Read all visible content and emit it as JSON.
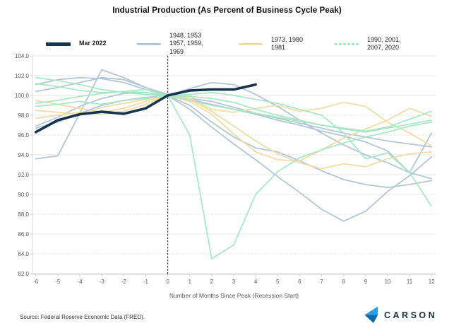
{
  "title": "Industrial Production (As Percent of Business Cycle Peak)",
  "legend": {
    "items": [
      {
        "label": "Mar 2022",
        "color": "#16334f",
        "style": "solid"
      },
      {
        "label": "1948, 1953\n1957, 1959,\n1969",
        "color": "#b3c6d6",
        "style": "solid"
      },
      {
        "label": "1973, 1980\n1981",
        "color": "#f2dca5",
        "style": "solid"
      },
      {
        "label": "1990, 2001,\n2007, 2020",
        "color": "#a5e7c3",
        "style": "dashed"
      }
    ]
  },
  "chart_data": {
    "type": "line",
    "title": "Industrial Production (As Percent of Business Cycle Peak)",
    "xlabel": "Number of Months Since Peak (Recession Start)",
    "ylabel": "",
    "ylim": [
      82,
      104
    ],
    "ytick_step": 2,
    "grid": "horizontal",
    "legend_position": "top",
    "peak_marker_x": 0,
    "x": [
      -6,
      -5,
      -4,
      -3,
      -2,
      -1,
      0,
      1,
      2,
      3,
      4,
      5,
      6,
      7,
      8,
      9,
      10,
      11,
      12
    ],
    "x_tick_labels": [
      "-6",
      "-5",
      "-4",
      "-3",
      "-2",
      "-1",
      "0",
      "1",
      "2",
      "3",
      "4",
      "5",
      "6",
      "7",
      "8",
      "9",
      "10",
      "11",
      "12"
    ],
    "y_tick_labels": [
      "104.0",
      "102.0",
      "100.0",
      "98.0",
      "96.0",
      "94.0",
      "92.0",
      "90.0",
      "88.0",
      "86.0",
      "84.0",
      "82.0"
    ],
    "series": [
      {
        "name": "1948",
        "group": "1948, 1953, 1957, 1959, 1969",
        "color": "#b3c6d6",
        "dash": "solid",
        "values": [
          100.4,
          100.8,
          101.3,
          101.8,
          101.6,
          100.8,
          100.0,
          99.0,
          97.3,
          95.8,
          94.7,
          94.3,
          93.4,
          92.4,
          91.5,
          91.0,
          90.7,
          91.0,
          91.4
        ]
      },
      {
        "name": "1953",
        "group": "1948, 1953, 1957, 1959, 1969",
        "color": "#b3c6d6",
        "dash": "solid",
        "values": [
          96.7,
          97.3,
          98.2,
          99.0,
          99.5,
          99.8,
          100.0,
          100.7,
          101.3,
          101.1,
          100.1,
          98.9,
          97.5,
          96.2,
          95.0,
          94.0,
          93.2,
          92.2,
          91.6
        ]
      },
      {
        "name": "1957",
        "group": "1948, 1953, 1957, 1959, 1969",
        "color": "#b3c6d6",
        "dash": "solid",
        "values": [
          101.1,
          101.6,
          101.8,
          101.7,
          101.3,
          100.6,
          100.0,
          98.6,
          96.8,
          95.1,
          93.5,
          91.8,
          90.2,
          88.5,
          87.3,
          88.3,
          90.3,
          91.9,
          93.8
        ]
      },
      {
        "name": "1959",
        "group": "1948, 1953, 1957, 1959, 1969",
        "color": "#b3c6d6",
        "dash": "solid",
        "values": [
          93.6,
          93.9,
          98.2,
          102.6,
          101.8,
          100.8,
          100.1,
          99.7,
          99.4,
          98.8,
          98.2,
          97.7,
          97.2,
          96.7,
          96.2,
          95.8,
          95.4,
          95.1,
          94.8
        ]
      },
      {
        "name": "1969",
        "group": "1948, 1953, 1957, 1959, 1969",
        "color": "#b3c6d6",
        "dash": "solid",
        "values": [
          96.9,
          97.8,
          98.9,
          99.7,
          100.2,
          100.3,
          100.0,
          99.6,
          99.1,
          98.6,
          98.1,
          97.5,
          97.0,
          96.4,
          95.9,
          95.3,
          94.4,
          92.2,
          96.2
        ]
      },
      {
        "name": "1973",
        "group": "1973, 1980, 1981",
        "color": "#f2dca5",
        "dash": "solid",
        "values": [
          98.5,
          98.3,
          98.1,
          98.8,
          99.2,
          99.6,
          100.0,
          99.7,
          98.6,
          98.3,
          98.7,
          99.0,
          98.4,
          98.7,
          99.3,
          98.9,
          97.3,
          96.2,
          94.9
        ]
      },
      {
        "name": "1980",
        "group": "1973, 1980, 1981",
        "color": "#f2dca5",
        "dash": "solid",
        "values": [
          99.5,
          99.1,
          98.7,
          98.3,
          98.7,
          99.4,
          100.0,
          99.4,
          98.1,
          96.1,
          94.3,
          93.5,
          93.4,
          94.5,
          95.7,
          96.6,
          97.5,
          98.7,
          97.9
        ]
      },
      {
        "name": "1981",
        "group": "1973, 1980, 1981",
        "color": "#f2dca5",
        "dash": "solid",
        "values": [
          97.7,
          98.0,
          98.3,
          98.1,
          98.4,
          99.1,
          100.0,
          99.6,
          98.4,
          96.9,
          95.4,
          94.1,
          93.2,
          92.6,
          93.1,
          92.8,
          93.6,
          94.1,
          94.3
        ]
      },
      {
        "name": "1990",
        "group": "1990, 2001, 2007, 2020",
        "color": "#a5e7c3",
        "dash": "dashed",
        "values": [
          99.2,
          99.5,
          99.9,
          100.2,
          100.4,
          100.3,
          100.0,
          99.9,
          99.7,
          99.3,
          98.6,
          98.0,
          97.5,
          97.0,
          96.6,
          96.3,
          96.7,
          97.1,
          97.5
        ]
      },
      {
        "name": "2001",
        "group": "1990, 2001, 2007, 2020",
        "color": "#a5e7c3",
        "dash": "dashed",
        "values": [
          101.8,
          101.5,
          101.1,
          100.6,
          100.3,
          100.1,
          100.0,
          99.5,
          99.0,
          98.6,
          98.2,
          97.8,
          97.4,
          97.0,
          96.7,
          96.4,
          96.8,
          97.6,
          98.4
        ]
      },
      {
        "name": "2007",
        "group": "1990, 2001, 2007, 2020",
        "color": "#a5e7c3",
        "dash": "dashed",
        "values": [
          101.2,
          100.9,
          100.5,
          100.3,
          100.4,
          100.6,
          100.0,
          100.1,
          100.3,
          100.0,
          99.6,
          99.2,
          98.6,
          98.0,
          96.2,
          93.6,
          94.2,
          92.2,
          88.8
        ]
      },
      {
        "name": "2020",
        "group": "1990, 2001, 2007, 2020",
        "color": "#a5e7c3",
        "dash": "dashed",
        "values": [
          98.9,
          99.1,
          99.4,
          99.1,
          99.5,
          99.7,
          100.0,
          96.0,
          83.5,
          84.9,
          90.0,
          92.3,
          93.7,
          94.5,
          95.2,
          95.8,
          96.3,
          96.9,
          97.3
        ]
      },
      {
        "name": "Mar 2022",
        "group": "Mar 2022",
        "color": "#16334f",
        "dash": "solid",
        "width": 3.6,
        "values": [
          96.3,
          97.5,
          98.1,
          98.35,
          98.15,
          98.7,
          100.0,
          100.5,
          100.6,
          100.6,
          101.1
        ]
      }
    ]
  },
  "footer": {
    "source": "Source: Federal Reserve Economic Data (FRED).",
    "brand": "CARSON"
  }
}
